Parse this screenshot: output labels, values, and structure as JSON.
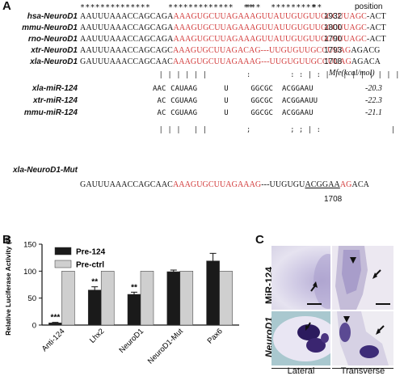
{
  "panelA": {
    "letter": "A",
    "stars_a": "**************",
    "stars_b": "*************  **",
    "stars_c": "***  *********",
    "stars_d": "**",
    "position_header": "position",
    "rows": [
      {
        "label": "hsa-NeuroD1",
        "black1": "AAUUUAAACCAGCAGA",
        "red": "AAAGUGCUUAGAAAGUUAUUGUGUUGCCUUAGC",
        "black2": "-ACT",
        "pos": "1932"
      },
      {
        "label": "mmu-NeuroD1",
        "black1": "AAUUUAAACCAGCAGA",
        "red": "AAAGUGCUUAGAAAGUUAUUGUGUUGCCUUAGC",
        "black2": "-ACT",
        "pos": "1800"
      },
      {
        "label": "rno-NeuroD1",
        "black1": "AAUUUAAACCAGCAGA",
        "red": "AAAGUGCUUAGAAAGUUAUUGUGUUGCCUUAGC",
        "black2": "-ACT",
        "pos": "1790"
      },
      {
        "label": "xtr-NeuroD1",
        "black1": "AAUUUAAACCAGCAGC",
        "red": "AAAGUGCUUAGACAG---UUGUGUUGCCUUAG",
        "black2": "AGACG",
        "pos": "1793"
      },
      {
        "label": "xla-NeuroD1",
        "black1": "GAUUUAAACCAGCAAC",
        "red": "AAAGUGCUUAGAAAG---UUGUGUUGCCUUAG",
        "black2": "AGACA",
        "pos": "1708"
      }
    ],
    "pairs_top": "                  | | | | | |         :         : : | : |   | | | | | | |",
    "mfe_header": "Mfe(kcal/mol)",
    "mirs": [
      {
        "label": "xla-miR-124",
        "seq": "AAC CAUAAG      U     GGCGC  ACGGAAU",
        "mfe": "-20.3"
      },
      {
        "label": "xtr-miR-124",
        "seq": " AC CGUAAG      U     GGCGC  ACGGAAUU",
        "mfe": "-22.3"
      },
      {
        "label": "mmu-miR-124",
        "seq": " AC CGUAAG      U     GGCGC  ACGGAAU",
        "mfe": "-21.1"
      }
    ],
    "pairs_bottom": "                  | | |   | |         ;         ; ; | :                |",
    "mut_row": {
      "label": "xla-NeuroD1-Mut",
      "black1": "GAUUUAAACCAGCAAC",
      "red1": "AAAGUGCUUAGAAAG",
      "black_mid": "---UUGUGU",
      "black_ul": "ACGGAA",
      "red2": "AG",
      "black2": "ACA",
      "pos": "1708"
    }
  },
  "panelB": {
    "letter": "B",
    "colors": {
      "pre124": "#1a1a1a",
      "prectrl": "#cfcfcf"
    }
  },
  "chart_data": {
    "type": "bar",
    "categories": [
      "Anti-124",
      "Lhx2",
      "NeuroD1",
      "NeuroD1-Mut",
      "Pax6"
    ],
    "series": [
      {
        "name": "Pre-124",
        "values": [
          4,
          65,
          57,
          99,
          119
        ],
        "errors": [
          1,
          6,
          4,
          3,
          14
        ]
      },
      {
        "name": "Pre-ctrl",
        "values": [
          100,
          100,
          100,
          100,
          100
        ],
        "errors": [
          0,
          0,
          0,
          0,
          0
        ]
      }
    ],
    "significance": [
      "***",
      "**",
      "**",
      "",
      ""
    ],
    "title": "",
    "xlabel": "",
    "ylabel": "Relative Luciferase Activity (%)",
    "ylim": [
      0,
      150
    ],
    "yticks": [
      0,
      50,
      100,
      150
    ],
    "legend": "top-left",
    "grid": false
  },
  "panelC": {
    "letter": "C",
    "row_labels": [
      "MiR-124",
      "NeuroD1"
    ],
    "col_labels": [
      "Lateral",
      "Transverse"
    ]
  }
}
